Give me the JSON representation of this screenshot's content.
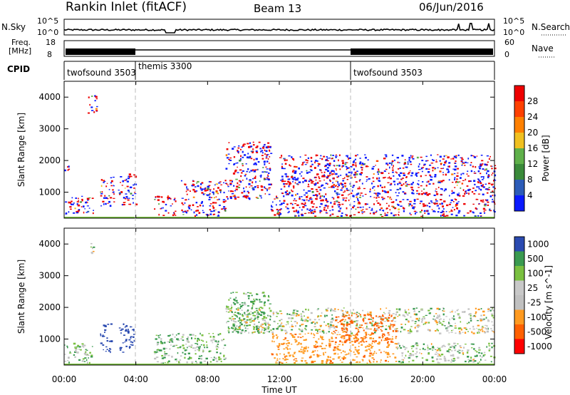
{
  "header": {
    "title": "Rankin Inlet (fitACF)",
    "beam": "Beam 13",
    "date": "06/Jun/2016"
  },
  "strip_noise": {
    "label": "N.Sky",
    "left_ticks": [
      "10^5",
      "10^0"
    ],
    "right_label": "N.Search",
    "right_ticks": [
      "10^5",
      "10^0"
    ]
  },
  "strip_freq": {
    "label_line1": "Freq.",
    "label_line2": "[MHz]",
    "left_ticks": [
      "18",
      "8"
    ],
    "right_label": "Nave",
    "right_ticks": [
      "60",
      "0"
    ]
  },
  "strip_cpid": {
    "label": "CPID",
    "segments": [
      {
        "name": "twofsound 3503",
        "start_h": 0,
        "end_h": 4
      },
      {
        "name": "themis 3300",
        "start_h": 4,
        "end_h": 16
      },
      {
        "name": "twofsound 3503",
        "start_h": 16,
        "end_h": 24
      }
    ]
  },
  "x_axis": {
    "label": "Time UT",
    "ticks": [
      "00:00",
      "04:00",
      "08:00",
      "12:00",
      "16:00",
      "20:00",
      "00:00"
    ]
  },
  "colors": {
    "power": [
      "#0a1aff",
      "#2c5cb8",
      "#3a8a3a",
      "#5fb04a",
      "#f0c020",
      "#ff8000",
      "#ff4000",
      "#ee0000"
    ],
    "velocity": [
      "#ff0000",
      "#ff6000",
      "#ff9a20",
      "#c0c0c0",
      "#c8c8c8",
      "#7ac040",
      "#3a9a50",
      "#2a4ab0"
    ]
  },
  "chart_data": [
    {
      "type": "heatmap",
      "panel": "power",
      "ylabel": "Slant Range [km]",
      "xlabel": "",
      "xlim": [
        0,
        24
      ],
      "ylim": [
        180,
        4500
      ],
      "yticks": [
        1000,
        2000,
        3000,
        4000
      ],
      "colorbar": {
        "label": "Power [dB]",
        "range": [
          0,
          32
        ],
        "ticks": [
          4,
          8,
          12,
          16,
          20,
          24,
          28
        ]
      },
      "regions": [
        {
          "t0": 0.0,
          "t1": 1.6,
          "r0": 300,
          "r1": 900,
          "level": 20
        },
        {
          "t0": 0.0,
          "t1": 0.25,
          "r0": 1700,
          "r1": 2100,
          "level": 12
        },
        {
          "t0": 1.3,
          "t1": 1.8,
          "r0": 3500,
          "r1": 4100,
          "level": 8
        },
        {
          "t0": 2.0,
          "t1": 2.8,
          "r0": 500,
          "r1": 1500,
          "level": 16
        },
        {
          "t0": 3.0,
          "t1": 4.0,
          "r0": 600,
          "r1": 1600,
          "level": 18
        },
        {
          "t0": 5.0,
          "t1": 6.2,
          "r0": 250,
          "r1": 900,
          "level": 20
        },
        {
          "t0": 6.5,
          "t1": 9.0,
          "r0": 250,
          "r1": 1400,
          "level": 16
        },
        {
          "t0": 9.0,
          "t1": 11.5,
          "r0": 800,
          "r1": 2600,
          "level": 10
        },
        {
          "t0": 11.5,
          "t1": 18.5,
          "r0": 250,
          "r1": 900,
          "level": 28
        },
        {
          "t0": 12.0,
          "t1": 24.0,
          "r0": 900,
          "r1": 2200,
          "level": 10
        },
        {
          "t0": 18.5,
          "t1": 24.0,
          "r0": 250,
          "r1": 800,
          "level": 16
        }
      ]
    },
    {
      "type": "heatmap",
      "panel": "velocity",
      "ylabel": "Slant Range [km]",
      "xlabel": "Time UT",
      "xlim": [
        0,
        24
      ],
      "ylim": [
        180,
        4500
      ],
      "yticks": [
        1000,
        2000,
        3000,
        4000
      ],
      "colorbar": {
        "label": "Velocity [m s^-1]",
        "ticks": [
          "-1000",
          "-500",
          "-100",
          "-25",
          "25",
          "100",
          "500",
          "1000"
        ]
      },
      "regions": [
        {
          "t0": 0.0,
          "t1": 1.6,
          "r0": 250,
          "r1": 900,
          "velocity": 60
        },
        {
          "t0": 1.4,
          "t1": 1.7,
          "r0": 3700,
          "r1": 4200,
          "velocity": 0
        },
        {
          "t0": 2.0,
          "t1": 2.6,
          "r0": 600,
          "r1": 1500,
          "velocity": 700
        },
        {
          "t0": 3.0,
          "t1": 3.9,
          "r0": 600,
          "r1": 1500,
          "velocity": 700
        },
        {
          "t0": 5.0,
          "t1": 9.0,
          "r0": 250,
          "r1": 1200,
          "velocity": 80
        },
        {
          "t0": 9.0,
          "t1": 11.5,
          "r0": 1200,
          "r1": 2500,
          "velocity": 150
        },
        {
          "t0": 9.0,
          "t1": 24.0,
          "r0": 1200,
          "r1": 2000,
          "velocity": 0
        },
        {
          "t0": 11.5,
          "t1": 18.5,
          "r0": 250,
          "r1": 1200,
          "velocity": -400
        },
        {
          "t0": 15.0,
          "t1": 18.5,
          "r0": 900,
          "r1": 1800,
          "velocity": -800
        },
        {
          "t0": 18.5,
          "t1": 24.0,
          "r0": 250,
          "r1": 900,
          "velocity": 40
        }
      ]
    }
  ]
}
